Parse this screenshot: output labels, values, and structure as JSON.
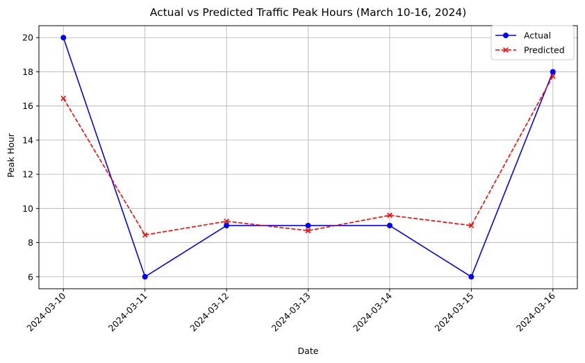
{
  "chart_data": {
    "type": "line",
    "title": "Actual vs Predicted Traffic Peak Hours (March 10-16, 2024)",
    "xlabel": "Date",
    "ylabel": "Peak Hour",
    "x": [
      "2024-03-10",
      "2024-03-11",
      "2024-03-12",
      "2024-03-13",
      "2024-03-14",
      "2024-03-15",
      "2024-03-16"
    ],
    "yticks": [
      6,
      8,
      10,
      12,
      14,
      16,
      18,
      20
    ],
    "ylim": [
      5.3,
      20.7
    ],
    "grid": true,
    "legend_position": "top-right",
    "series": [
      {
        "name": "Actual",
        "values": [
          20,
          6,
          9,
          9,
          9,
          6,
          18
        ],
        "color": "#0000ff",
        "marker": "circle",
        "linestyle": "solid"
      },
      {
        "name": "Predicted",
        "values": [
          16.45,
          8.45,
          9.25,
          8.7,
          9.6,
          9.0,
          17.75
        ],
        "color": "#ff0000",
        "marker": "x",
        "linestyle": "dashed"
      }
    ]
  }
}
